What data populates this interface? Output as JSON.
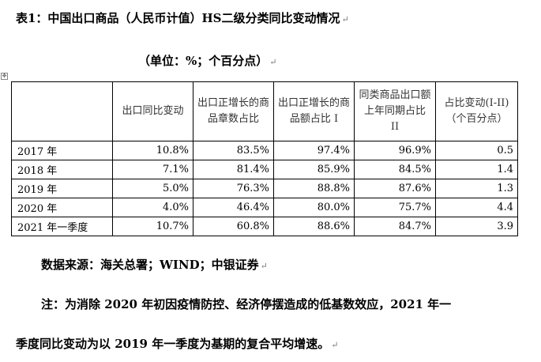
{
  "title": "表1：中国出口商品（人民币计值）HS二级分类同比变动情况",
  "unit": "（单位：%；个百分点）",
  "table": {
    "headers": [
      "",
      "出口同比变动",
      "出口正增长的商品章数占比",
      "出口正增长的商品额占比 I",
      "同类商品出口额上年同期占比 II",
      "占比变动(I-II)（个百分点）"
    ],
    "rows": [
      {
        "label": "2017 年",
        "values": [
          "10.8%",
          "83.5%",
          "97.4%",
          "96.9%",
          "0.5"
        ]
      },
      {
        "label": "2018 年",
        "values": [
          "7.1%",
          "81.4%",
          "85.9%",
          "84.5%",
          "1.4"
        ]
      },
      {
        "label": "2019 年",
        "values": [
          "5.0%",
          "76.3%",
          "88.8%",
          "87.6%",
          "1.3"
        ]
      },
      {
        "label": "2020 年",
        "values": [
          "4.0%",
          "46.4%",
          "80.0%",
          "75.7%",
          "4.4"
        ]
      },
      {
        "label": "2021 年一季度",
        "values": [
          "10.7%",
          "60.8%",
          "88.6%",
          "84.7%",
          "3.9"
        ]
      }
    ]
  },
  "source": "数据来源：海关总署；WIND；中银证券",
  "note": {
    "line1": "注：为消除 2020 年初因疫情防控、经济停摆造成的低基数效应，2021 年一",
    "line2": "季度同比变动为以 2019 年一季度为基期的复合平均增速。"
  },
  "paragraph_mark": "↵",
  "table_anchor": "✥"
}
